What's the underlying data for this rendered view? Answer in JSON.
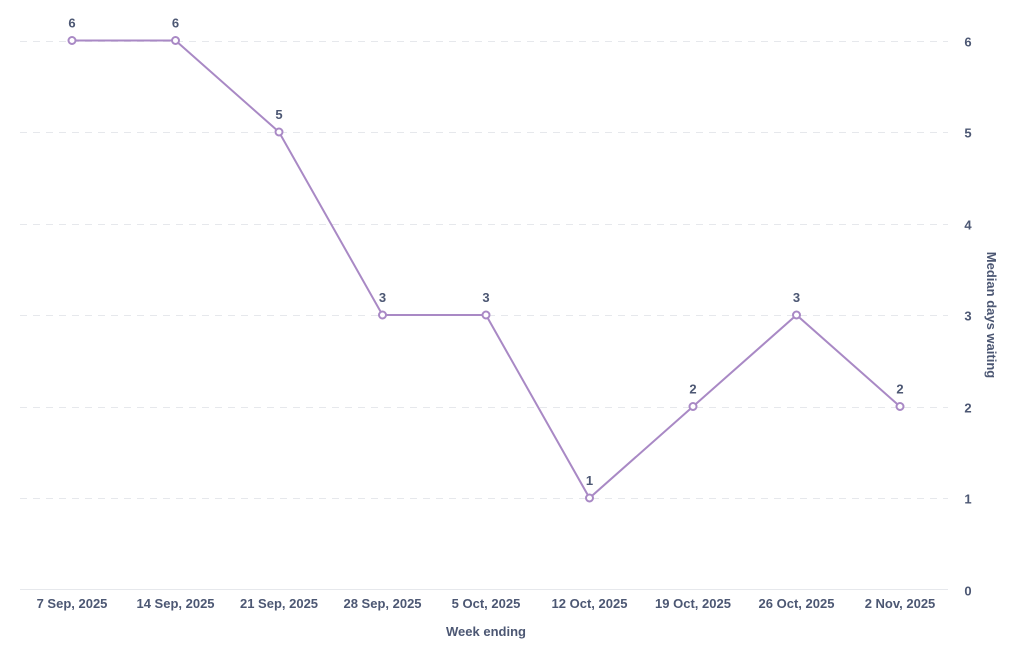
{
  "chart_data": {
    "type": "line",
    "title": "",
    "xlabel": "Week ending",
    "ylabel": "Median days waiting",
    "categories": [
      "7 Sep, 2025",
      "14 Sep, 2025",
      "21 Sep, 2025",
      "28 Sep, 2025",
      "5 Oct, 2025",
      "12 Oct, 2025",
      "19 Oct, 2025",
      "26 Oct, 2025",
      "2 Nov, 2025"
    ],
    "series": [
      {
        "name": "Median days waiting",
        "values": [
          6,
          6,
          5,
          3,
          3,
          1,
          2,
          3,
          2
        ],
        "color": "#a989c5"
      }
    ],
    "y_ticks": [
      0,
      1,
      2,
      3,
      4,
      5,
      6
    ],
    "ylim": [
      0,
      6
    ],
    "y_axis_position": "right",
    "grid": true,
    "data_labels": true,
    "legend": "none"
  }
}
